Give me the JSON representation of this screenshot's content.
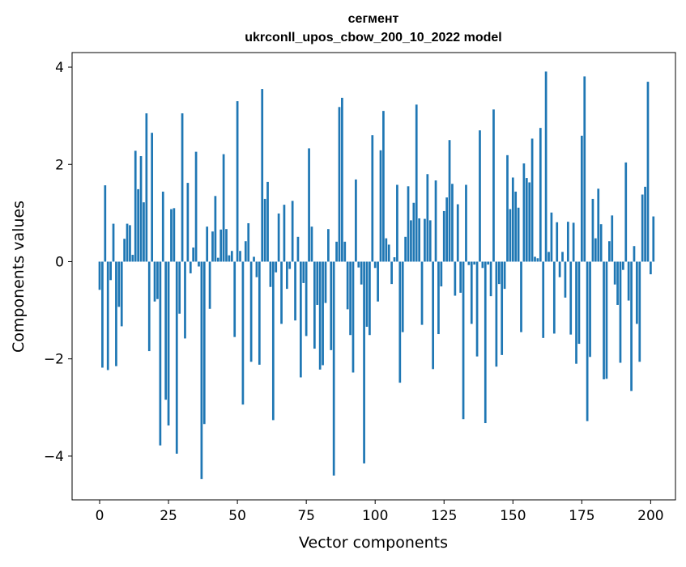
{
  "chart_data": {
    "type": "bar",
    "title": "сегмент",
    "subtitle": "ukrconll_upos_cbow_200_10_2022 model",
    "xlabel": "Vector components",
    "ylabel": "Components values",
    "xlim": [
      -10,
      209
    ],
    "ylim": [
      -4.9,
      4.3
    ],
    "xticks": [
      0,
      25,
      50,
      75,
      100,
      125,
      150,
      175,
      200
    ],
    "yticks": [
      -4,
      -2,
      0,
      2,
      4
    ],
    "xtick_labels": [
      "0",
      "25",
      "50",
      "75",
      "100",
      "125",
      "150",
      "175",
      "200"
    ],
    "ytick_labels": [
      "−4",
      "−2",
      "0",
      "2",
      "4"
    ],
    "bar_color": "#1f77b4",
    "values": [
      -0.58,
      -2.18,
      1.57,
      -2.23,
      -0.38,
      0.78,
      -2.15,
      -0.93,
      -1.33,
      0.47,
      0.78,
      0.75,
      0.14,
      2.28,
      1.49,
      2.17,
      1.22,
      3.05,
      -1.84,
      2.65,
      -0.82,
      -0.77,
      -3.78,
      1.44,
      -2.84,
      -3.37,
      1.08,
      1.1,
      -3.95,
      -1.07,
      3.05,
      -1.58,
      1.62,
      -0.24,
      0.29,
      2.26,
      -0.1,
      -4.47,
      -3.34,
      0.72,
      -0.97,
      0.62,
      1.35,
      0.08,
      0.66,
      2.21,
      0.67,
      0.13,
      0.22,
      -1.55,
      3.3,
      0.22,
      -2.94,
      0.42,
      0.79,
      -2.06,
      0.1,
      -0.32,
      -2.12,
      3.55,
      1.29,
      1.64,
      -0.52,
      -3.26,
      -0.22,
      0.99,
      -1.28,
      1.17,
      -0.56,
      -0.15,
      1.25,
      -1.21,
      0.51,
      -2.38,
      -0.44,
      -1.53,
      2.33,
      0.72,
      -1.79,
      -0.89,
      -2.22,
      -2.13,
      -0.85,
      0.67,
      -1.82,
      -4.4,
      0.41,
      3.18,
      3.37,
      0.41,
      -0.98,
      -1.51,
      -2.28,
      1.69,
      -0.12,
      -0.47,
      -4.15,
      -1.34,
      -1.51,
      2.6,
      -0.13,
      -0.82,
      2.29,
      3.1,
      0.48,
      0.35,
      -0.46,
      0.09,
      1.58,
      -2.49,
      -1.45,
      0.51,
      1.55,
      0.85,
      1.21,
      3.23,
      0.89,
      -1.3,
      0.88,
      1.8,
      0.85,
      -2.21,
      1.67,
      -1.49,
      -0.51,
      1.04,
      1.32,
      2.5,
      1.6,
      -0.7,
      1.18,
      -0.64,
      -3.24,
      1.58,
      -0.07,
      -1.28,
      -0.06,
      -1.95,
      2.7,
      -0.13,
      -3.32,
      -0.06,
      -0.71,
      3.13,
      -2.16,
      -0.46,
      -1.92,
      -0.56,
      2.19,
      1.08,
      1.73,
      1.44,
      1.11,
      -1.45,
      2.02,
      1.72,
      1.63,
      2.53,
      0.1,
      0.07,
      2.75,
      -1.57,
      3.91,
      0.2,
      1.01,
      -1.48,
      0.81,
      -0.32,
      0.2,
      -0.74,
      0.82,
      -1.5,
      0.8,
      -2.1,
      -1.69,
      2.59,
      3.81,
      -3.28,
      -1.96,
      1.29,
      0.48,
      1.5,
      0.77,
      -2.42,
      -2.41,
      0.42,
      0.95,
      -0.47,
      -0.89,
      -2.08,
      -0.17,
      2.04,
      -0.8,
      -2.66,
      0.32,
      -1.28,
      -2.06,
      1.38,
      1.54,
      3.7,
      -0.26,
      0.93
    ]
  }
}
